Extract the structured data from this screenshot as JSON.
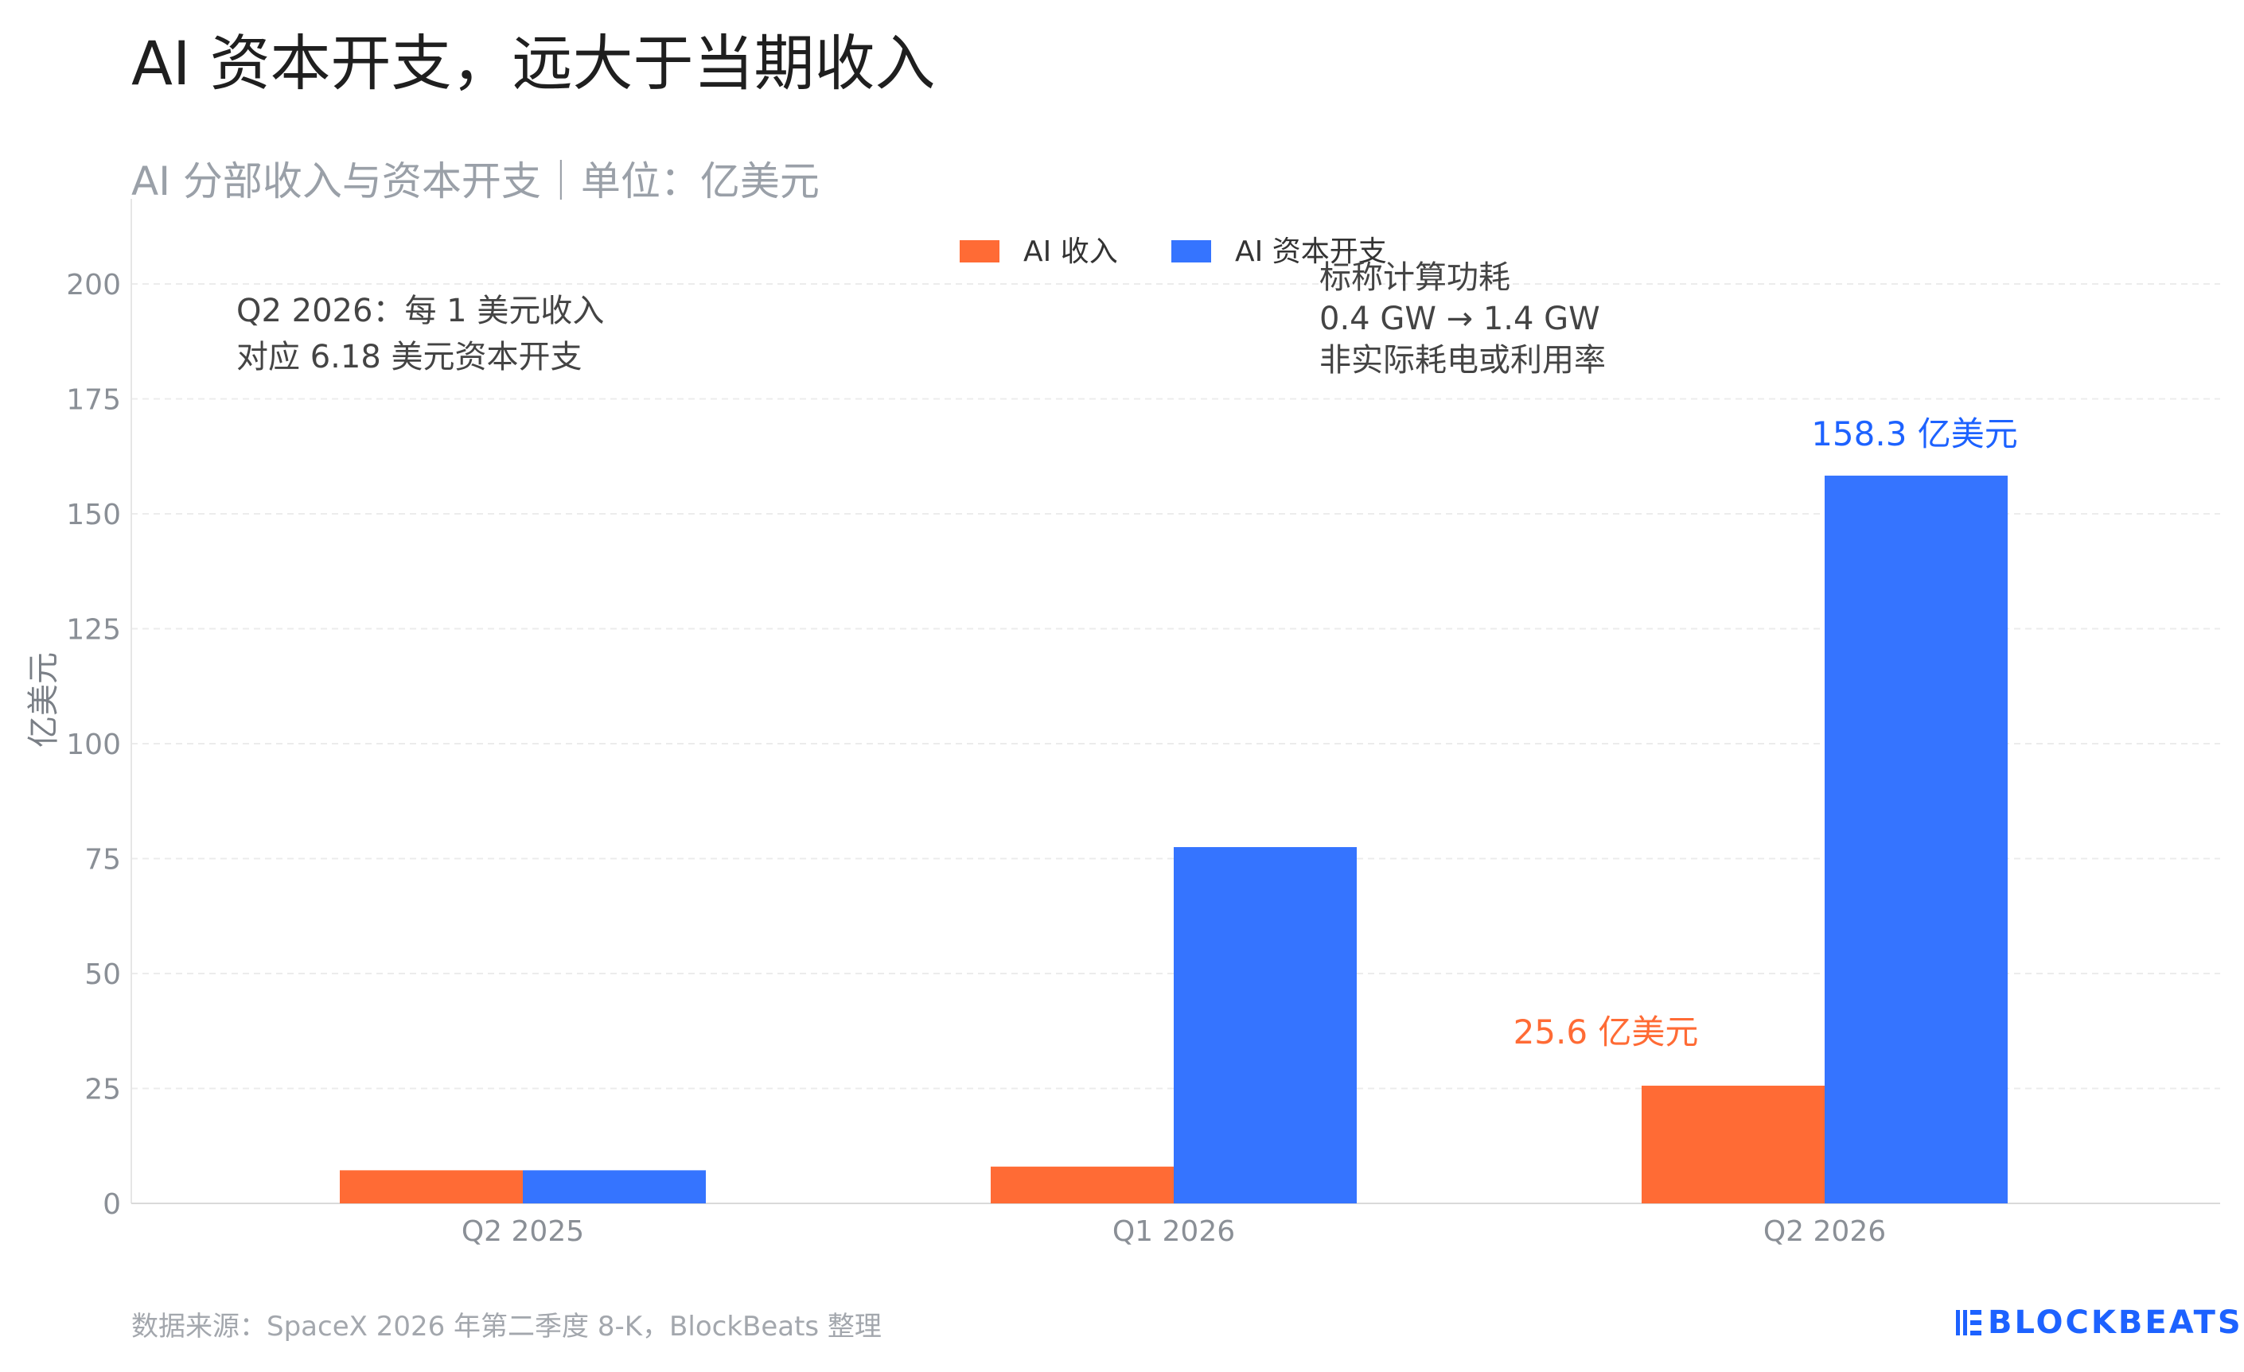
{
  "title": "AI 资本开支，远大于当期收入",
  "subtitle": "AI 分部收入与资本开支｜单位：亿美元",
  "source": "数据来源：SpaceX 2026 年第二季度 8-K，BlockBeats 整理",
  "logo": "BLOCKBEATS",
  "colors": {
    "revenue": "#ff6b35",
    "capex": "#3574ff",
    "capex_label": "#1d62ff"
  },
  "annotations": {
    "ratio_line1": "Q2 2026：每 1 美元收入",
    "ratio_line2": "对应 6.18 美元资本开支",
    "power_line1": "标称计算功耗",
    "power_line2": "0.4 GW → 1.4 GW",
    "power_line3": "非实际耗电或利用率",
    "revenue_label": "25.6 亿美元",
    "capex_label": "158.3 亿美元"
  },
  "chart_data": {
    "type": "bar",
    "categories": [
      "Q2 2025",
      "Q1 2026",
      "Q2 2026"
    ],
    "series": [
      {
        "name": "AI 收入",
        "values": [
          7.2,
          8.0,
          25.6
        ]
      },
      {
        "name": "AI 资本开支",
        "values": [
          7.2,
          77.5,
          158.3
        ]
      }
    ],
    "ylabel": "亿美元",
    "ylim": [
      0,
      220
    ],
    "yticks": [
      0,
      25,
      50,
      75,
      100,
      125,
      150,
      175,
      200
    ],
    "grid": true,
    "legend": "top-center"
  }
}
